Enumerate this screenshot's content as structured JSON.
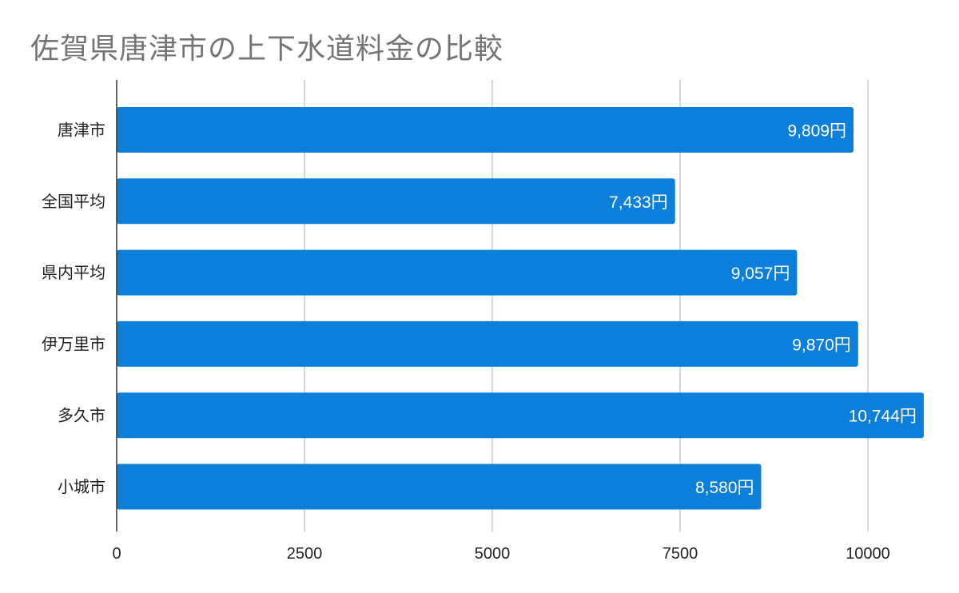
{
  "chart_data": {
    "type": "bar",
    "orientation": "horizontal",
    "title": "佐賀県唐津市の上下水道料金の比較",
    "xlabel": "",
    "ylabel": "",
    "categories": [
      "唐津市",
      "全国平均",
      "県内平均",
      "伊万里市",
      "多久市",
      "小城市"
    ],
    "values": [
      9809,
      7433,
      9057,
      9870,
      10744,
      8580
    ],
    "value_labels": [
      "9,809円",
      "7,433円",
      "9,057円",
      "9,870円",
      "10,744円",
      "8,580円"
    ],
    "xlim": [
      0,
      10744
    ],
    "xticks": [
      0,
      2500,
      5000,
      7500,
      10000
    ],
    "xtick_labels": [
      "0",
      "2500",
      "5000",
      "7500",
      "10000"
    ],
    "grid": "vertical",
    "legend": "none",
    "bar_color": "#0b7fd9",
    "grid_color": "#cccccc",
    "axis_color": "#333333"
  }
}
